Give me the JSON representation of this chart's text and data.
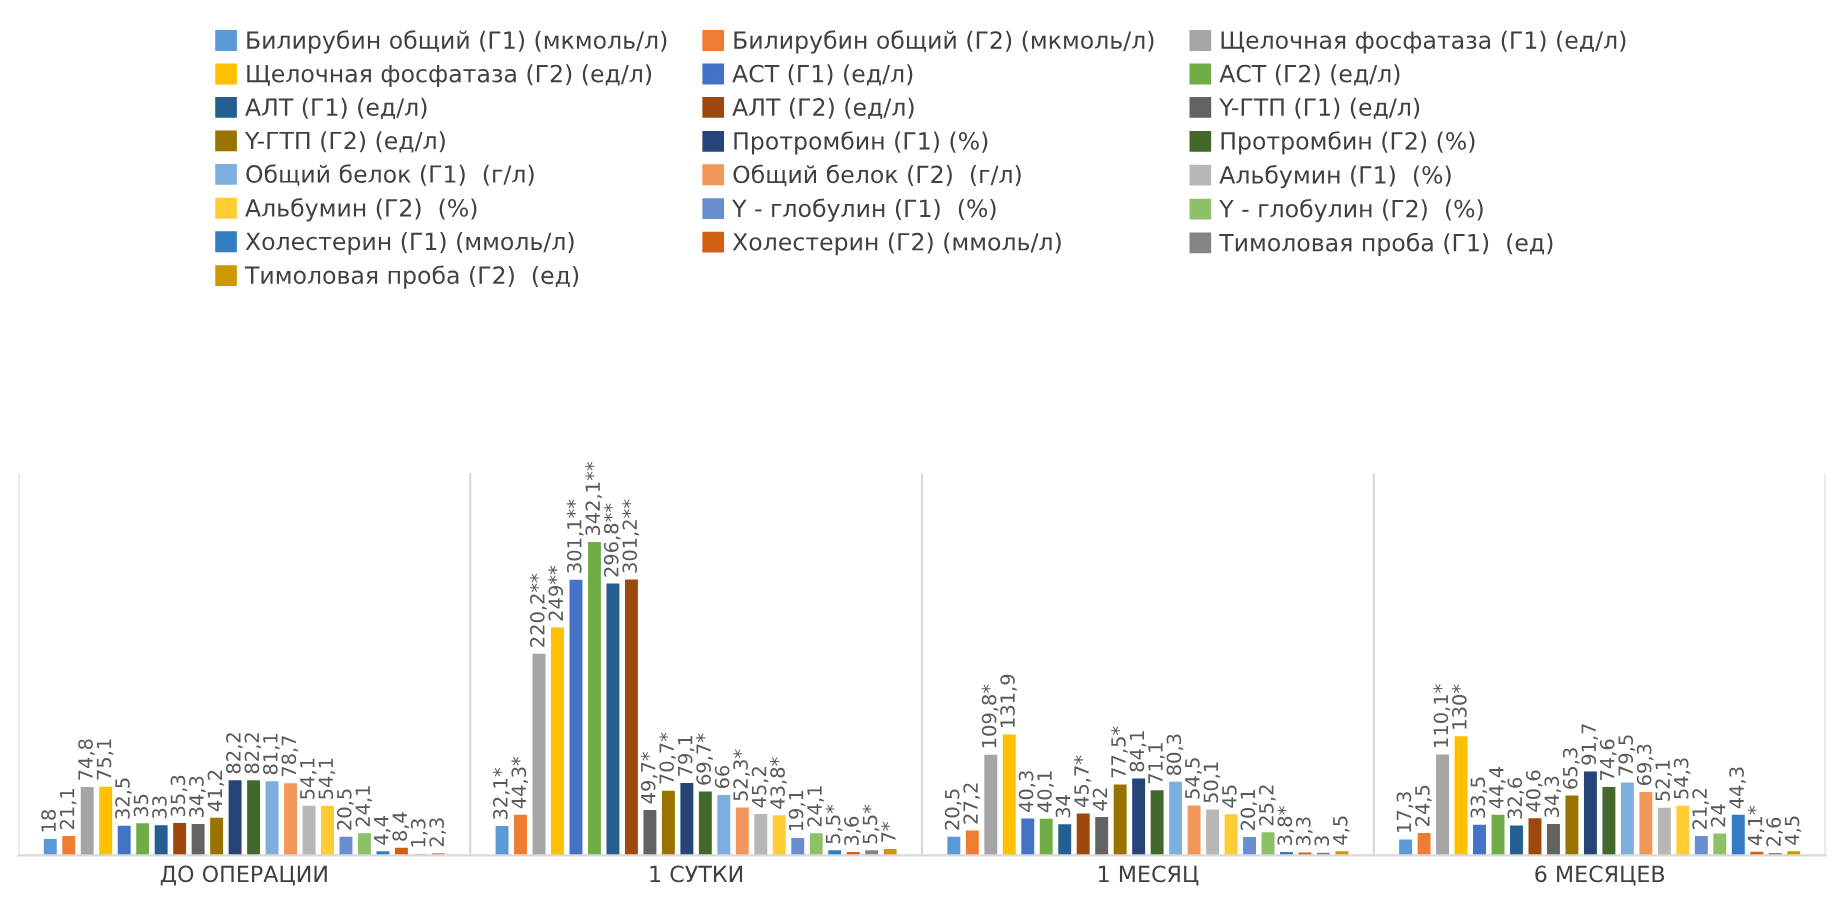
{
  "chart_data": {
    "type": "bar",
    "categories": [
      "ДО ОПЕРАЦИИ",
      "1 СУТКИ",
      "1 МЕСЯЦ",
      "6 МЕСЯЦЕВ"
    ],
    "legend": "top",
    "grid": "x",
    "tick_labels": "x",
    "series": [
      {
        "name": "Билирубин общий (Г1) (мкмоль/л)",
        "color": "#5b9bd5",
        "values": [
          18,
          32.1,
          20.5,
          17.3
        ],
        "value_labels": [
          "18",
          "32,1*",
          "20,5",
          "17,3"
        ]
      },
      {
        "name": "Билирубин общий (Г2) (мкмоль/л)",
        "color": "#ed7d31",
        "values": [
          21.1,
          44.3,
          27.2,
          24.5
        ],
        "value_labels": [
          "21,1",
          "44,3*",
          "27,2",
          "24,5"
        ]
      },
      {
        "name": "Щелочная фосфатаза (Г1) (ед/л)",
        "color": "#a5a5a5",
        "values": [
          74.8,
          220.2,
          109.8,
          110.1
        ],
        "value_labels": [
          "74,8",
          "220,2**",
          "109,8*",
          "110,1*"
        ]
      },
      {
        "name": "Щелочная фосфатаза (Г2) (ед/л)",
        "color": "#ffc000",
        "values": [
          75.1,
          249,
          131.9,
          130
        ],
        "value_labels": [
          "75,1",
          "249**",
          "131,9",
          "130*"
        ]
      },
      {
        "name": "АСТ (Г1) (ед/л)",
        "color": "#4472c4",
        "values": [
          32.5,
          301.1,
          40.3,
          33.5
        ],
        "value_labels": [
          "32,5",
          "301,1**",
          "40,3",
          "33,5"
        ]
      },
      {
        "name": "АСТ (Г2) (ед/л)",
        "color": "#70ad47",
        "values": [
          35,
          342.1,
          40.1,
          44.4
        ],
        "value_labels": [
          "35",
          "342,1**",
          "40,1",
          "44,4"
        ]
      },
      {
        "name": "АЛТ (Г1) (ед/л)",
        "color": "#255e91",
        "values": [
          33,
          296.8,
          34,
          32.6
        ],
        "value_labels": [
          "33",
          "296,8**",
          "34",
          "32,6"
        ]
      },
      {
        "name": "АЛТ (Г2) (ед/л)",
        "color": "#9e480e",
        "values": [
          35.3,
          301.2,
          45.7,
          40.6
        ],
        "value_labels": [
          "35,3",
          "301,2**",
          "45,7*",
          "40,6"
        ]
      },
      {
        "name": "Y-ГТП (Г1) (ед/л)",
        "color": "#636363",
        "values": [
          34.3,
          49.7,
          42,
          34.3
        ],
        "value_labels": [
          "34,3",
          "49,7*",
          "42",
          "34,3"
        ]
      },
      {
        "name": "Y-ГТП (Г2) (ед/л)",
        "color": "#997300",
        "values": [
          41.2,
          70.7,
          77.5,
          65.3
        ],
        "value_labels": [
          "41,2",
          "70,7*",
          "77,5*",
          "65,3"
        ]
      },
      {
        "name": "Протромбин (Г1) (%)",
        "color": "#264478",
        "values": [
          82.2,
          79.1,
          84.1,
          91.7
        ],
        "value_labels": [
          "82,2",
          "79,1",
          "84,1",
          "91,7"
        ]
      },
      {
        "name": "Протромбин (Г2) (%)",
        "color": "#43682b",
        "values": [
          82.2,
          69.7,
          71.1,
          74.6
        ],
        "value_labels": [
          "82,2",
          "69,7*",
          "71,1",
          "74,6"
        ]
      },
      {
        "name": "Общий белок (Г1)  (г/л)",
        "color": "#7cafdd",
        "values": [
          81.1,
          66,
          80.3,
          79.5
        ],
        "value_labels": [
          "81,1",
          "66",
          "80,3",
          "79,5"
        ]
      },
      {
        "name": "Общий белок (Г2)  (г/л)",
        "color": "#f1975a",
        "values": [
          78.7,
          52.3,
          54.5,
          69.3
        ],
        "value_labels": [
          "78,7",
          "52,3*",
          "54,5",
          "69,3"
        ]
      },
      {
        "name": "Альбумин (Г1)  (%)",
        "color": "#b7b7b7",
        "values": [
          54.1,
          45.2,
          50.1,
          52.1
        ],
        "value_labels": [
          "54,1",
          "45,2",
          "50,1",
          "52,1"
        ]
      },
      {
        "name": "Альбумин (Г2)  (%)",
        "color": "#ffcd33",
        "values": [
          54.1,
          43.8,
          45,
          54.3
        ],
        "value_labels": [
          "54,1",
          "43,8*",
          "45",
          "54,3"
        ]
      },
      {
        "name": "Y - глобулин (Г1)  (%)",
        "color": "#698ed0",
        "values": [
          20.5,
          19.1,
          20.1,
          21.2
        ],
        "value_labels": [
          "20,5",
          "19,1",
          "20,1",
          "21,2"
        ]
      },
      {
        "name": "Y - глобулин (Г2)  (%)",
        "color": "#8cc168",
        "values": [
          24.1,
          24.1,
          25.2,
          24
        ],
        "value_labels": [
          "24,1",
          "24,1",
          "25,2",
          "24"
        ]
      },
      {
        "name": "Холестерин (Г1) (ммоль/л)",
        "color": "#327dc2",
        "values": [
          4.4,
          5.5,
          3.8,
          44.3
        ],
        "value_labels": [
          "4,4",
          "5,5*",
          "3,8*",
          "44,3"
        ]
      },
      {
        "name": "Холестерин (Г2) (ммоль/л)",
        "color": "#d26012",
        "values": [
          8.4,
          3.6,
          3.3,
          4.1
        ],
        "value_labels": [
          "8,4",
          "3,6",
          "3,3",
          "4,1*"
        ]
      },
      {
        "name": "Тимоловая проба (Г1)  (ед)",
        "color": "#848484",
        "values": [
          1.3,
          5.5,
          3,
          2.6
        ],
        "value_labels": [
          "1,3",
          "5,5*",
          "3",
          "2,6"
        ]
      },
      {
        "name": "Тимоловая проба (Г2)  (ед)",
        "color": "#cc9a00",
        "values": [
          2.3,
          7,
          4.5,
          4.5
        ],
        "value_labels": [
          "2,3",
          "7*",
          "4,5",
          "4,5"
        ]
      }
    ]
  }
}
